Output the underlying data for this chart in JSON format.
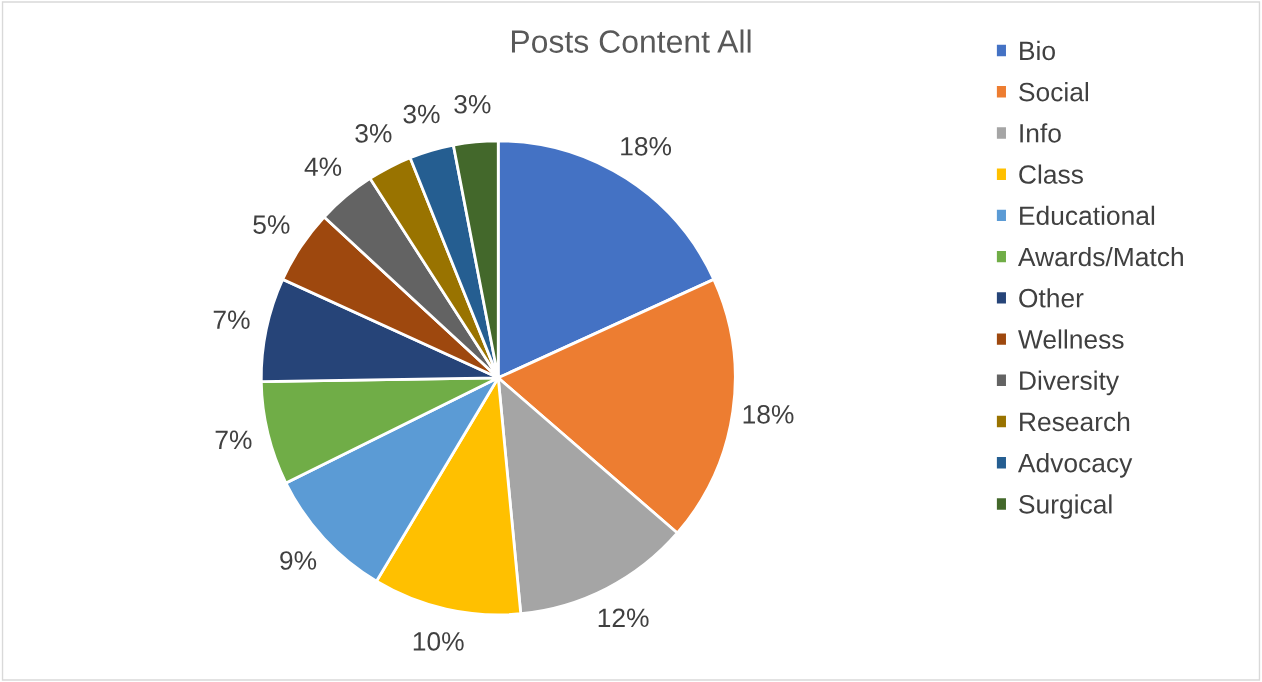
{
  "chart_data": {
    "type": "pie",
    "title": "Posts Content All",
    "categories": [
      "Bio",
      "Social",
      "Info",
      "Class",
      "Educational",
      "Awards/Match",
      "Other",
      "Wellness",
      "Diversity",
      "Research",
      "Advocacy",
      "Surgical"
    ],
    "values": [
      18,
      18,
      12,
      10,
      9,
      7,
      7,
      5,
      4,
      3,
      3,
      3
    ],
    "colors": [
      "#4472c4",
      "#ed7d31",
      "#a5a5a5",
      "#ffc000",
      "#5b9bd5",
      "#70ad47",
      "#264478",
      "#9e480e",
      "#636363",
      "#997300",
      "#255e91",
      "#43682b"
    ],
    "value_labels": [
      "18%",
      "18%",
      "12%",
      "10%",
      "9%",
      "7%",
      "7%",
      "5%",
      "4%",
      "3%",
      "3%",
      "3%"
    ],
    "legend": "right"
  }
}
